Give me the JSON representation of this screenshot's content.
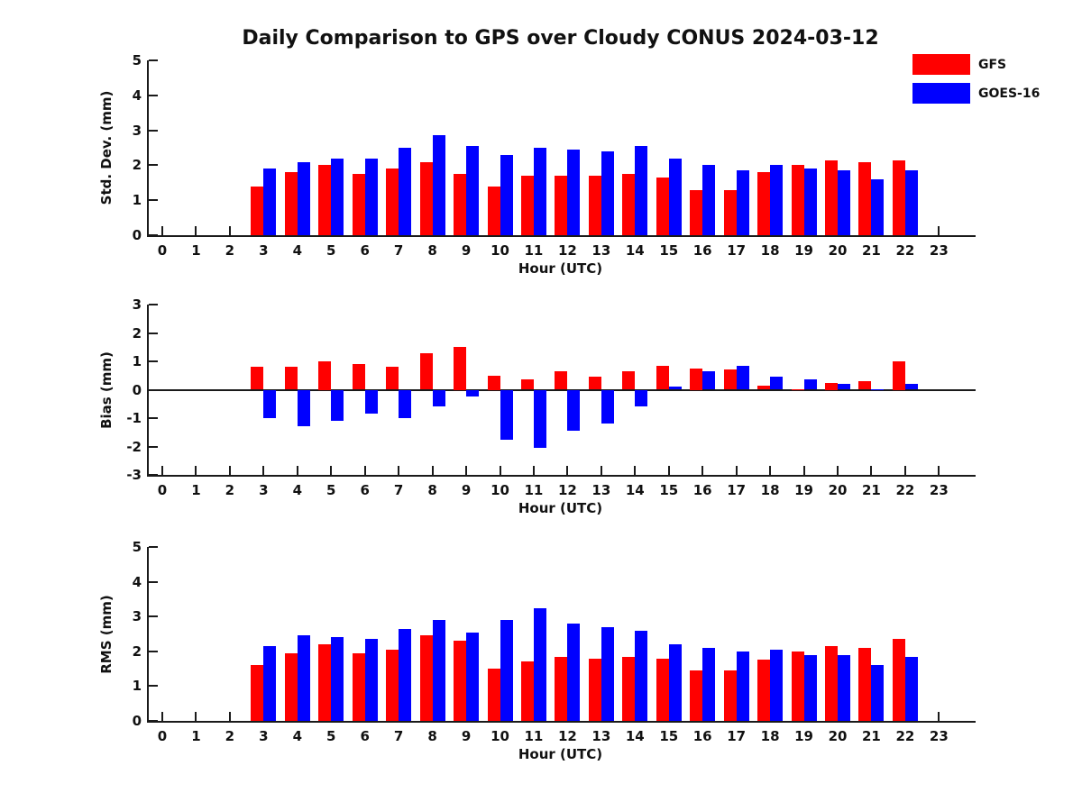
{
  "title": "Daily Comparison to GPS over Cloudy CONUS 2024-03-12",
  "legend": {
    "items": [
      {
        "label": "GFS",
        "color": "#ff0000"
      },
      {
        "label": "GOES-16",
        "color": "#0000ff"
      }
    ]
  },
  "colors": {
    "gfs": "#ff0000",
    "goes16": "#0000ff",
    "axis": "#1a1a1a"
  },
  "chart_data": [
    {
      "type": "bar",
      "ylabel": "Std. Dev. (mm)",
      "xlabel": "Hour (UTC)",
      "ylim": [
        0,
        5
      ],
      "yticks": [
        0,
        1,
        2,
        3,
        4,
        5
      ],
      "grid": false,
      "legend_position": "upper-right-above-axes",
      "categories": [
        0,
        1,
        2,
        3,
        4,
        5,
        6,
        7,
        8,
        9,
        10,
        11,
        12,
        13,
        14,
        15,
        16,
        17,
        18,
        19,
        20,
        21,
        22,
        23
      ],
      "series": [
        {
          "name": "GFS",
          "color": "#ff0000",
          "values": [
            null,
            null,
            null,
            1.4,
            1.8,
            2.0,
            1.75,
            1.9,
            2.1,
            1.75,
            1.4,
            1.7,
            1.7,
            1.7,
            1.75,
            1.65,
            1.3,
            1.3,
            1.8,
            2.0,
            2.15,
            2.1,
            2.15,
            null
          ]
        },
        {
          "name": "GOES-16",
          "color": "#0000ff",
          "values": [
            null,
            null,
            null,
            1.9,
            2.1,
            2.2,
            2.2,
            2.5,
            2.85,
            2.55,
            2.3,
            2.5,
            2.45,
            2.4,
            2.55,
            2.2,
            2.0,
            1.85,
            2.0,
            1.9,
            1.85,
            1.6,
            1.85,
            null
          ]
        }
      ]
    },
    {
      "type": "bar",
      "ylabel": "Bias (mm)",
      "xlabel": "Hour (UTC)",
      "ylim": [
        -3,
        3
      ],
      "yticks": [
        -3,
        -2,
        -1,
        0,
        1,
        2,
        3
      ],
      "zero_line": true,
      "grid": false,
      "categories": [
        0,
        1,
        2,
        3,
        4,
        5,
        6,
        7,
        8,
        9,
        10,
        11,
        12,
        13,
        14,
        15,
        16,
        17,
        18,
        19,
        20,
        21,
        22,
        23
      ],
      "series": [
        {
          "name": "GFS",
          "color": "#ff0000",
          "values": [
            null,
            null,
            null,
            0.8,
            0.8,
            1.0,
            0.9,
            0.8,
            1.3,
            1.5,
            0.5,
            0.35,
            0.65,
            0.45,
            0.65,
            0.85,
            0.75,
            0.7,
            0.15,
            0.03,
            0.25,
            0.3,
            1.0,
            null
          ]
        },
        {
          "name": "GOES-16",
          "color": "#0000ff",
          "values": [
            null,
            null,
            null,
            -1.0,
            -1.3,
            -1.1,
            -0.85,
            -1.0,
            -0.6,
            -0.25,
            -1.75,
            -2.05,
            -1.45,
            -1.2,
            -0.6,
            0.1,
            0.65,
            0.85,
            0.45,
            0.35,
            0.2,
            0.02,
            0.2,
            null
          ]
        }
      ]
    },
    {
      "type": "bar",
      "ylabel": "RMS (mm)",
      "xlabel": "Hour (UTC)",
      "ylim": [
        0,
        5
      ],
      "yticks": [
        0,
        1,
        2,
        3,
        4,
        5
      ],
      "grid": false,
      "categories": [
        0,
        1,
        2,
        3,
        4,
        5,
        6,
        7,
        8,
        9,
        10,
        11,
        12,
        13,
        14,
        15,
        16,
        17,
        18,
        19,
        20,
        21,
        22,
        23
      ],
      "series": [
        {
          "name": "GFS",
          "color": "#ff0000",
          "values": [
            null,
            null,
            null,
            1.6,
            1.95,
            2.2,
            1.95,
            2.05,
            2.45,
            2.3,
            1.5,
            1.7,
            1.85,
            1.8,
            1.85,
            1.8,
            1.45,
            1.45,
            1.75,
            2.0,
            2.15,
            2.1,
            2.35,
            null
          ]
        },
        {
          "name": "GOES-16",
          "color": "#0000ff",
          "values": [
            null,
            null,
            null,
            2.15,
            2.45,
            2.4,
            2.35,
            2.65,
            2.9,
            2.55,
            2.9,
            3.25,
            2.8,
            2.7,
            2.6,
            2.2,
            2.1,
            2.0,
            2.05,
            1.9,
            1.9,
            1.6,
            1.85,
            null
          ]
        }
      ]
    }
  ]
}
